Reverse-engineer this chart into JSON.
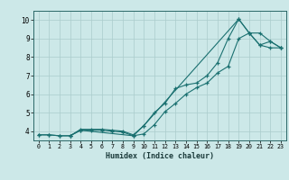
{
  "xlabel": "Humidex (Indice chaleur)",
  "background_color": "#cce8e8",
  "grid_color": "#aacccc",
  "line_color": "#1a7070",
  "xlim": [
    -0.5,
    23.5
  ],
  "ylim": [
    3.5,
    10.5
  ],
  "xticks": [
    0,
    1,
    2,
    3,
    4,
    5,
    6,
    7,
    8,
    9,
    10,
    11,
    12,
    13,
    14,
    15,
    16,
    17,
    18,
    19,
    20,
    21,
    22,
    23
  ],
  "yticks": [
    4,
    5,
    6,
    7,
    8,
    9,
    10
  ],
  "series1_x": [
    0,
    1,
    2,
    3,
    4,
    5,
    6,
    7,
    8,
    9,
    10,
    11,
    12,
    13,
    14,
    15,
    16,
    17,
    18,
    19,
    20,
    21,
    22,
    23
  ],
  "series1_y": [
    3.8,
    3.8,
    3.75,
    3.75,
    4.05,
    4.05,
    4.05,
    4.0,
    3.95,
    3.75,
    3.85,
    4.35,
    5.05,
    5.5,
    6.0,
    6.35,
    6.6,
    7.15,
    7.5,
    9.0,
    9.3,
    8.65,
    8.5,
    8.5
  ],
  "series2_x": [
    0,
    1,
    2,
    3,
    4,
    5,
    6,
    7,
    8,
    9,
    10,
    11,
    12,
    13,
    14,
    15,
    16,
    17,
    18,
    19,
    20,
    21,
    22,
    23
  ],
  "series2_y": [
    3.8,
    3.8,
    3.75,
    3.75,
    4.1,
    4.1,
    4.1,
    4.05,
    4.0,
    3.8,
    4.3,
    5.0,
    5.5,
    6.3,
    6.5,
    6.6,
    7.0,
    7.7,
    9.0,
    10.05,
    9.3,
    9.3,
    8.85,
    8.5
  ],
  "series3_x": [
    3,
    4,
    9,
    10,
    19,
    20,
    21,
    22,
    23
  ],
  "series3_y": [
    3.75,
    4.05,
    3.75,
    4.3,
    10.05,
    9.3,
    8.65,
    8.85,
    8.5
  ]
}
